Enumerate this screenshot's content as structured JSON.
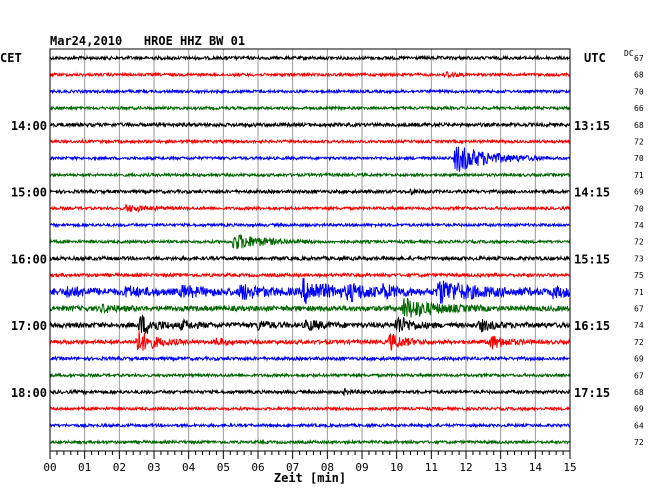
{
  "chart_data": {
    "type": "line",
    "title": "Mar24,2010   HROE HHZ BW 01",
    "left_axis_title": "CET",
    "right_axis_title": "UTC",
    "dc_label": "DC",
    "xlabel": "Zeit [min]",
    "x_ticks": [
      "00",
      "01",
      "02",
      "03",
      "04",
      "05",
      "06",
      "07",
      "08",
      "09",
      "10",
      "11",
      "12",
      "13",
      "14",
      "15"
    ],
    "xlim": [
      0,
      15
    ],
    "grid": true,
    "trace_colors": [
      "#000000",
      "#ff0000",
      "#0000ff",
      "#006600"
    ],
    "left_time_labels": [
      {
        "row": 4,
        "text": "14:00"
      },
      {
        "row": 8,
        "text": "15:00"
      },
      {
        "row": 12,
        "text": "16:00"
      },
      {
        "row": 16,
        "text": "17:00"
      },
      {
        "row": 20,
        "text": "18:00"
      }
    ],
    "right_time_labels": [
      {
        "row": 4,
        "text": "13:15"
      },
      {
        "row": 8,
        "text": "14:15"
      },
      {
        "row": 12,
        "text": "15:15"
      },
      {
        "row": 16,
        "text": "16:15"
      },
      {
        "row": 20,
        "text": "17:15"
      }
    ],
    "dc_values": [
      "67",
      "68",
      "70",
      "66",
      "68",
      "72",
      "70",
      "71",
      "69",
      "70",
      "74",
      "72",
      "73",
      "75",
      "71",
      "67",
      "74",
      "72",
      "69",
      "67",
      "68",
      "69",
      "64",
      "72"
    ],
    "series": [
      {
        "row": 0,
        "noise": 1.6,
        "events": []
      },
      {
        "row": 1,
        "noise": 1.4,
        "events": [
          {
            "min": 11.4,
            "amp": 3,
            "dur": 0.3
          }
        ]
      },
      {
        "row": 2,
        "noise": 1.4,
        "events": []
      },
      {
        "row": 3,
        "noise": 1.4,
        "events": []
      },
      {
        "row": 4,
        "noise": 1.8,
        "events": []
      },
      {
        "row": 5,
        "noise": 1.4,
        "events": []
      },
      {
        "row": 6,
        "noise": 1.4,
        "events": [
          {
            "min": 11.7,
            "amp": 14,
            "dur": 0.9
          }
        ]
      },
      {
        "row": 7,
        "noise": 1.4,
        "events": []
      },
      {
        "row": 8,
        "noise": 1.6,
        "events": [
          {
            "min": 10.4,
            "amp": 2.5,
            "dur": 0.2
          }
        ]
      },
      {
        "row": 9,
        "noise": 1.4,
        "events": [
          {
            "min": 2.2,
            "amp": 3,
            "dur": 0.6
          }
        ]
      },
      {
        "row": 10,
        "noise": 1.4,
        "events": []
      },
      {
        "row": 11,
        "noise": 1.4,
        "events": [
          {
            "min": 5.3,
            "amp": 8,
            "dur": 0.8
          }
        ]
      },
      {
        "row": 12,
        "noise": 1.8,
        "events": []
      },
      {
        "row": 13,
        "noise": 1.6,
        "events": []
      },
      {
        "row": 14,
        "noise": 3.5,
        "events": [
          {
            "min": 0.5,
            "amp": 4,
            "dur": 0.4
          },
          {
            "min": 2.2,
            "amp": 4,
            "dur": 0.4
          },
          {
            "min": 3.8,
            "amp": 5,
            "dur": 0.5
          },
          {
            "min": 5.5,
            "amp": 7,
            "dur": 0.5
          },
          {
            "min": 7.3,
            "amp": 11,
            "dur": 0.7
          },
          {
            "min": 8.6,
            "amp": 6,
            "dur": 0.6
          },
          {
            "min": 9.6,
            "amp": 5,
            "dur": 0.4
          },
          {
            "min": 11.2,
            "amp": 11,
            "dur": 0.9
          },
          {
            "min": 14.5,
            "amp": 4,
            "dur": 0.5
          }
        ]
      },
      {
        "row": 15,
        "noise": 2.5,
        "events": [
          {
            "min": 1.5,
            "amp": 3,
            "dur": 0.4
          },
          {
            "min": 10.2,
            "amp": 10,
            "dur": 0.8
          }
        ]
      },
      {
        "row": 16,
        "noise": 2.5,
        "events": [
          {
            "min": 2.6,
            "amp": 10,
            "dur": 0.4
          },
          {
            "min": 3.8,
            "amp": 4,
            "dur": 0.3
          },
          {
            "min": 6.0,
            "amp": 4,
            "dur": 0.3
          },
          {
            "min": 7.4,
            "amp": 5,
            "dur": 0.4
          },
          {
            "min": 10.0,
            "amp": 9,
            "dur": 0.4
          },
          {
            "min": 12.4,
            "amp": 5,
            "dur": 0.4
          }
        ]
      },
      {
        "row": 17,
        "noise": 2.0,
        "events": [
          {
            "min": 2.5,
            "amp": 11,
            "dur": 0.5
          },
          {
            "min": 9.8,
            "amp": 8,
            "dur": 0.4
          },
          {
            "min": 12.7,
            "amp": 7,
            "dur": 0.4
          },
          {
            "min": 4.8,
            "amp": 3,
            "dur": 0.3
          }
        ]
      },
      {
        "row": 18,
        "noise": 1.6,
        "events": []
      },
      {
        "row": 19,
        "noise": 1.4,
        "events": []
      },
      {
        "row": 20,
        "noise": 1.6,
        "events": [
          {
            "min": 8.5,
            "amp": 2.5,
            "dur": 0.2
          }
        ]
      },
      {
        "row": 21,
        "noise": 1.4,
        "events": []
      },
      {
        "row": 22,
        "noise": 1.4,
        "events": []
      },
      {
        "row": 23,
        "noise": 1.4,
        "events": []
      }
    ]
  }
}
